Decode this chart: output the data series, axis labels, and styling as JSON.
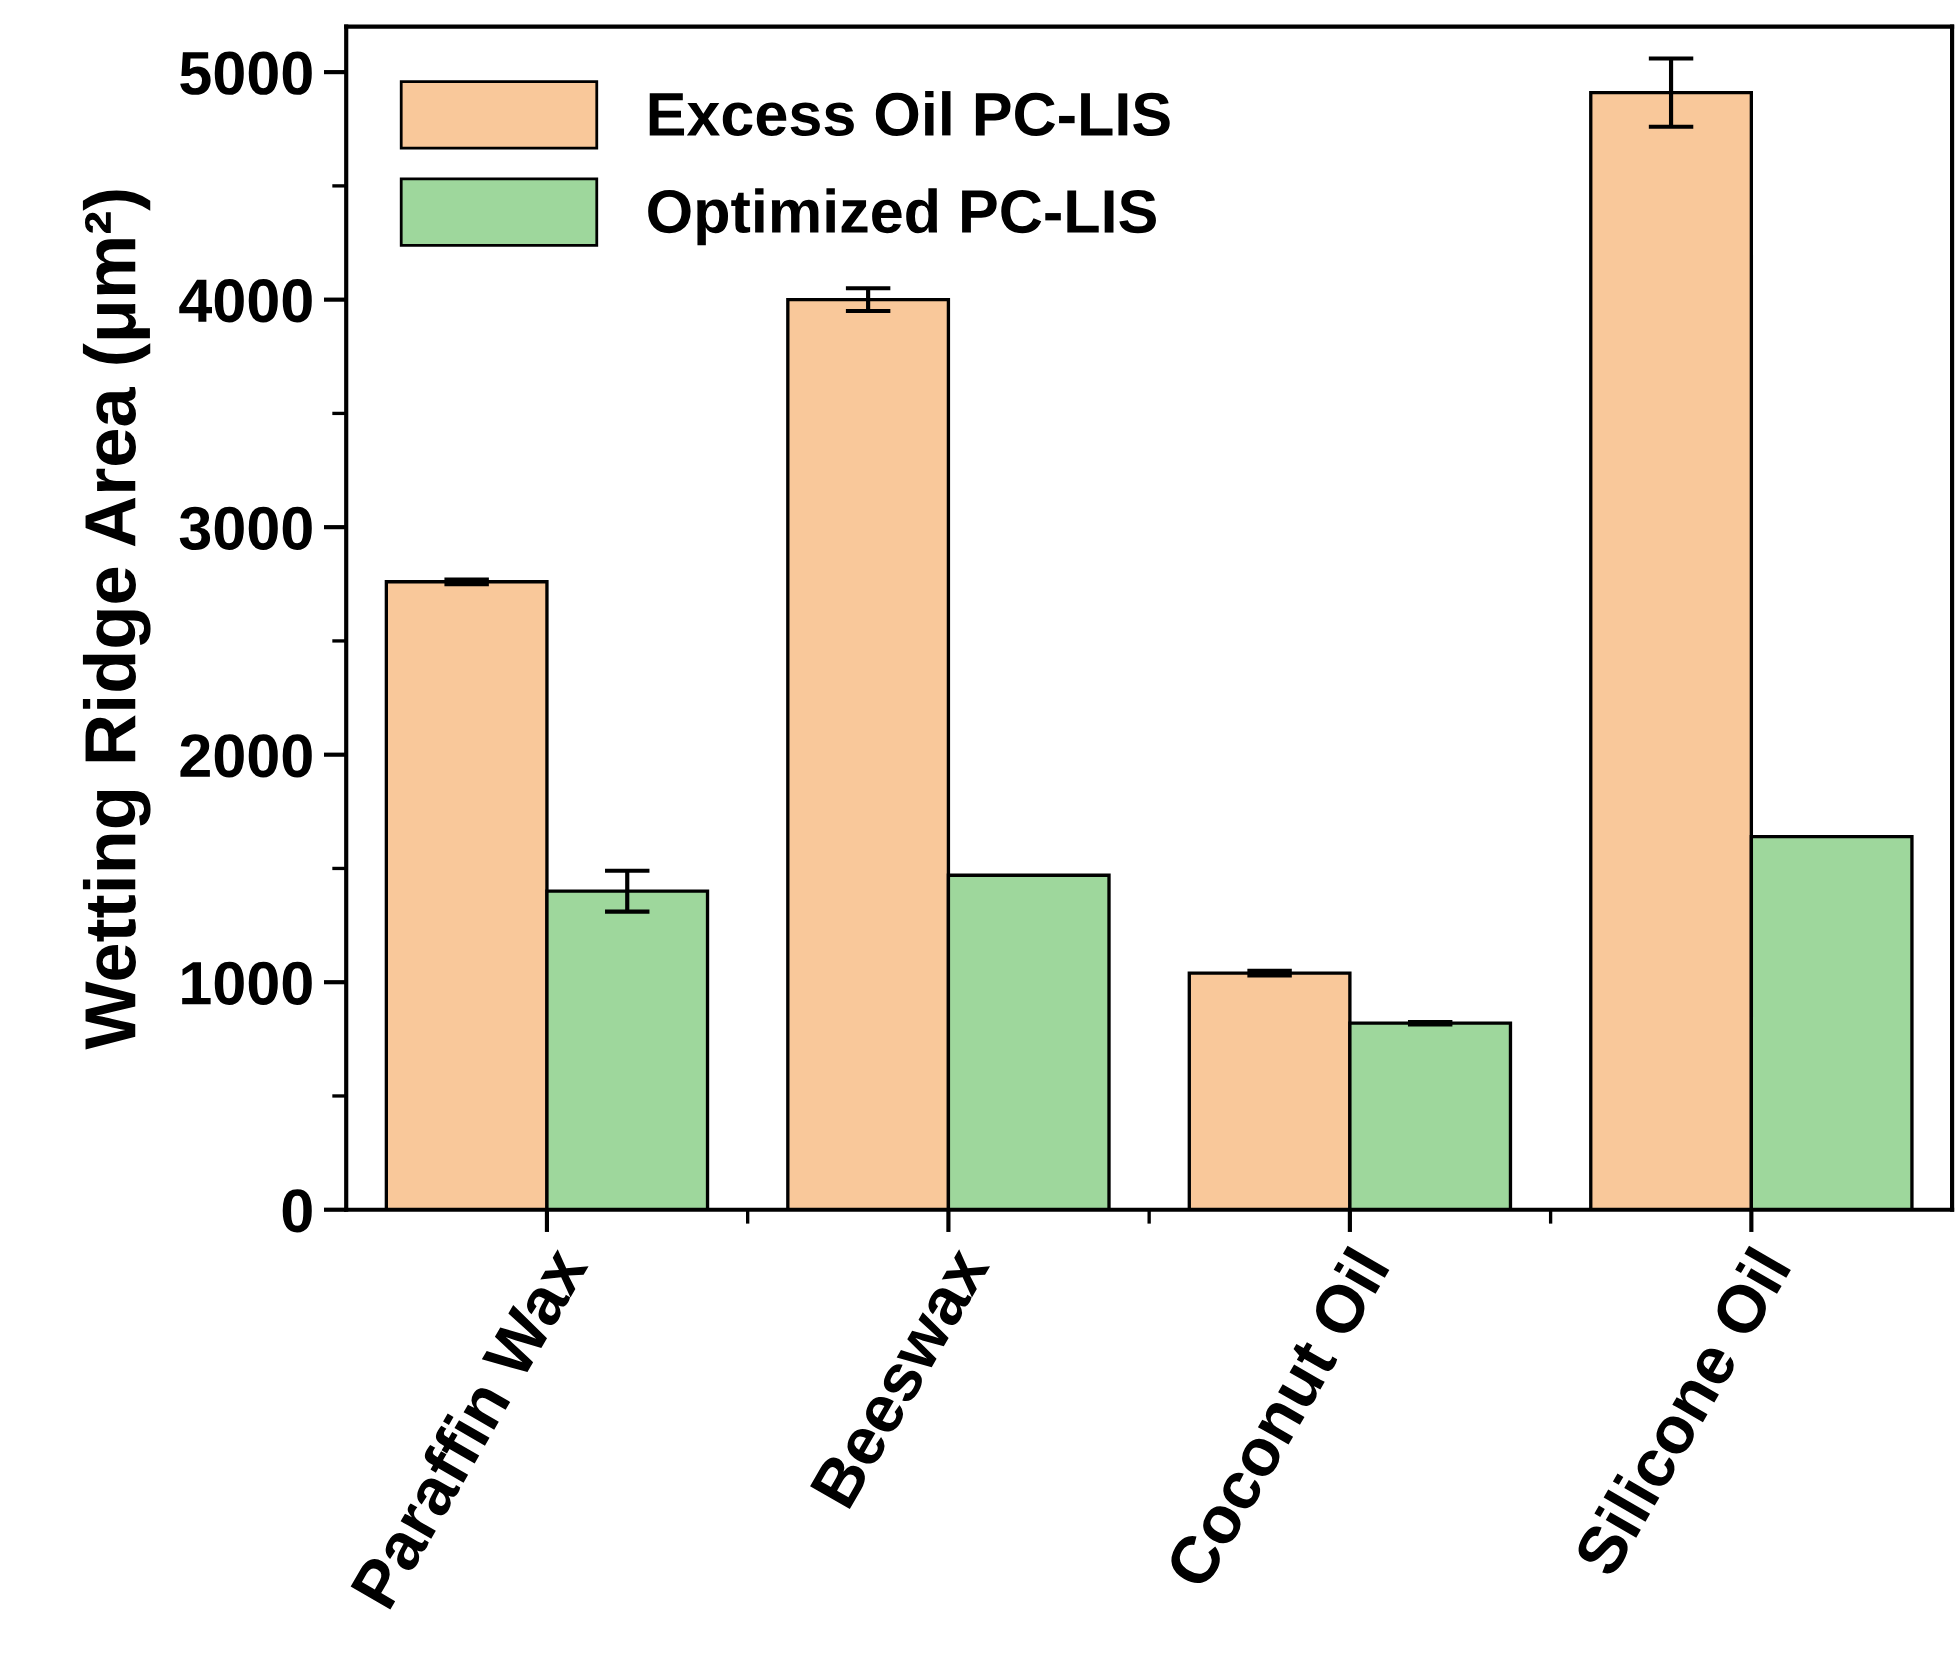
{
  "chart_data": {
    "type": "bar",
    "ylabel": "Wetting Ridge Area (μm²)",
    "categories": [
      "Paraffin Wax",
      "Beeswax",
      "Coconut Oil",
      "Silicone Oil"
    ],
    "series": [
      {
        "name": "Excess Oil PC-LIS",
        "color": "#f9c89a",
        "values": [
          2760,
          4000,
          1040,
          4910
        ],
        "errors": [
          10,
          50,
          10,
          150
        ]
      },
      {
        "name": "Optimized PC-LIS",
        "color": "#9ed79c",
        "values": [
          1400,
          1470,
          820,
          1640
        ],
        "errors": [
          90,
          null,
          5,
          null
        ]
      }
    ],
    "ylim": [
      0,
      5200
    ],
    "yticks": [
      0,
      {
        "value": 500,
        "label": null
      },
      1000,
      {
        "value": 1500,
        "label": null
      },
      2000,
      {
        "value": 2500,
        "label": null
      },
      3000,
      {
        "value": 3500,
        "label": null
      },
      4000,
      {
        "value": 4500,
        "label": null
      },
      5000
    ],
    "grid": false,
    "legend": "top left"
  }
}
